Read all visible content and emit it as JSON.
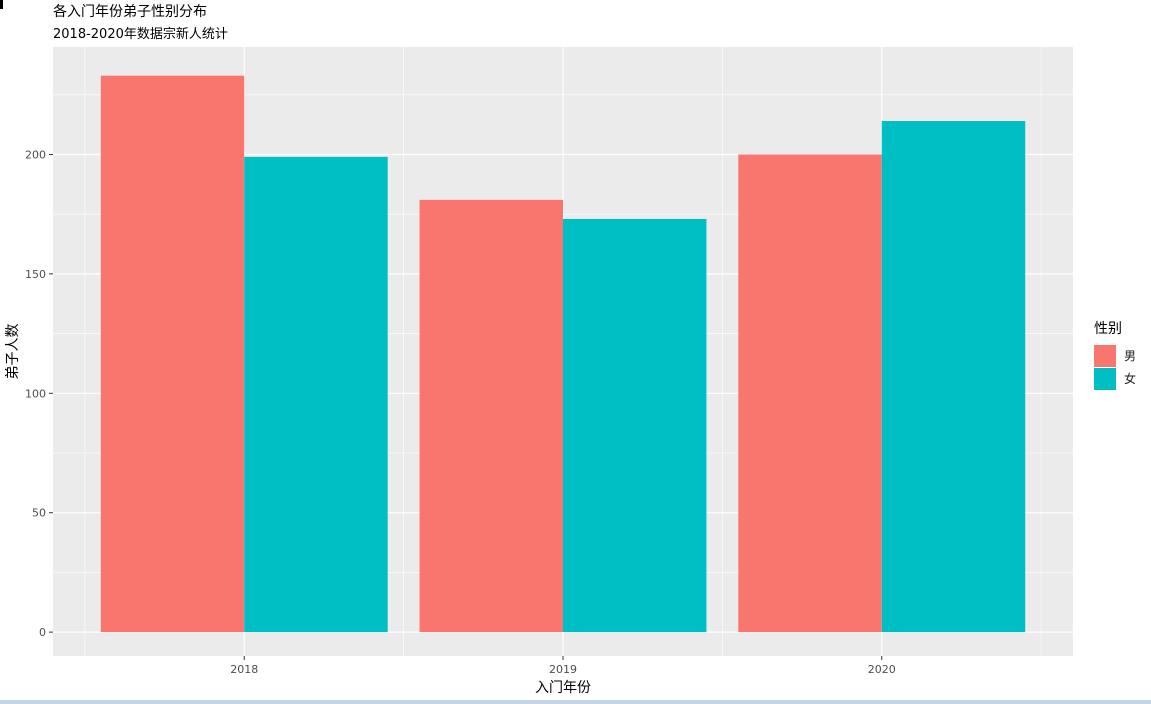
{
  "chart_data": {
    "type": "bar",
    "title": "各入门年份弟子性别分布",
    "subtitle": "2018-2020年数据宗新人统计",
    "xlabel": "入门年份",
    "ylabel": "弟子人数",
    "categories": [
      "2018",
      "2019",
      "2020"
    ],
    "series": [
      {
        "name": "男",
        "color": "#F8766D",
        "values": [
          233,
          181,
          200
        ]
      },
      {
        "name": "女",
        "color": "#00BFC4",
        "values": [
          199,
          173,
          214
        ]
      }
    ],
    "ylim": [
      -10,
      245
    ],
    "yticks": [
      0,
      50,
      100,
      150,
      200
    ],
    "grid": true,
    "legend": {
      "title": "性别",
      "position": "right"
    },
    "panel_color": "#EBEBEB",
    "gridline_color": "#FFFFFF"
  }
}
